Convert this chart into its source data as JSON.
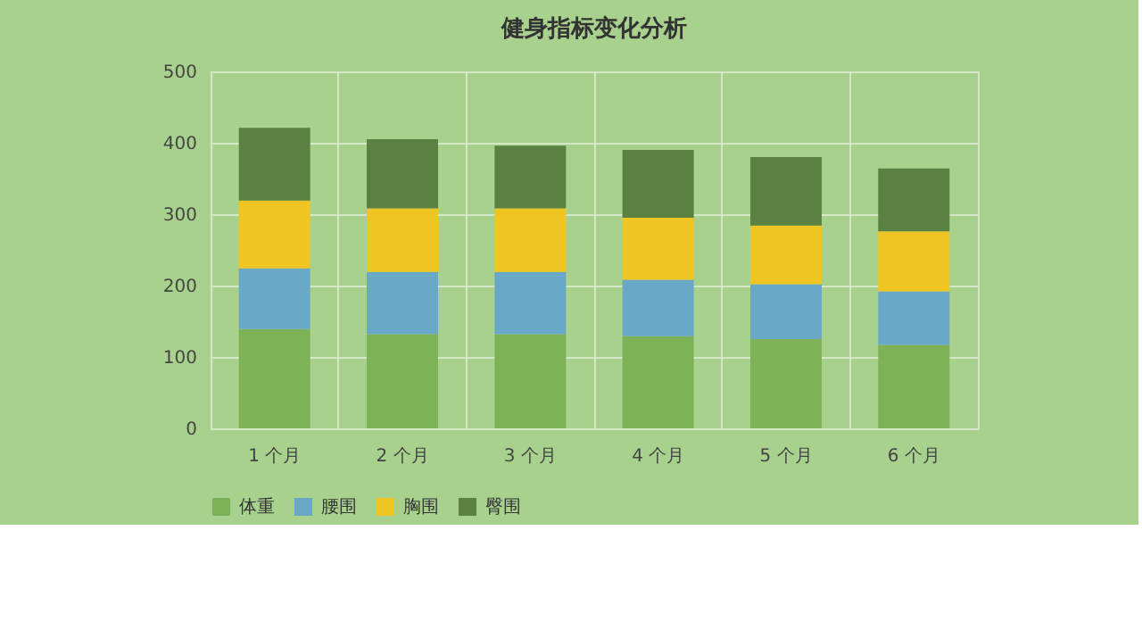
{
  "chart_data": {
    "type": "bar",
    "title": "健身指标变化分析",
    "stacked": true,
    "categories": [
      "1 个月",
      "2 个月",
      "3 个月",
      "4 个月",
      "5 个月",
      "6 个月"
    ],
    "series": [
      {
        "name": "体重",
        "color": "#7db356",
        "values": [
          139,
          132,
          132,
          129,
          125,
          117
        ]
      },
      {
        "name": "腰围",
        "color": "#6aa8c8",
        "values": [
          85,
          87,
          87,
          79,
          77,
          75
        ]
      },
      {
        "name": "胸围",
        "color": "#efc523",
        "values": [
          95,
          89,
          89,
          87,
          82,
          84
        ]
      },
      {
        "name": "臀围",
        "color": "#5a8141",
        "values": [
          102,
          97,
          88,
          95,
          96,
          88
        ]
      }
    ],
    "ylim": [
      0,
      500
    ],
    "yticks": [
      0,
      100,
      200,
      300,
      400,
      500
    ],
    "grid": true,
    "legend": "bottom"
  }
}
